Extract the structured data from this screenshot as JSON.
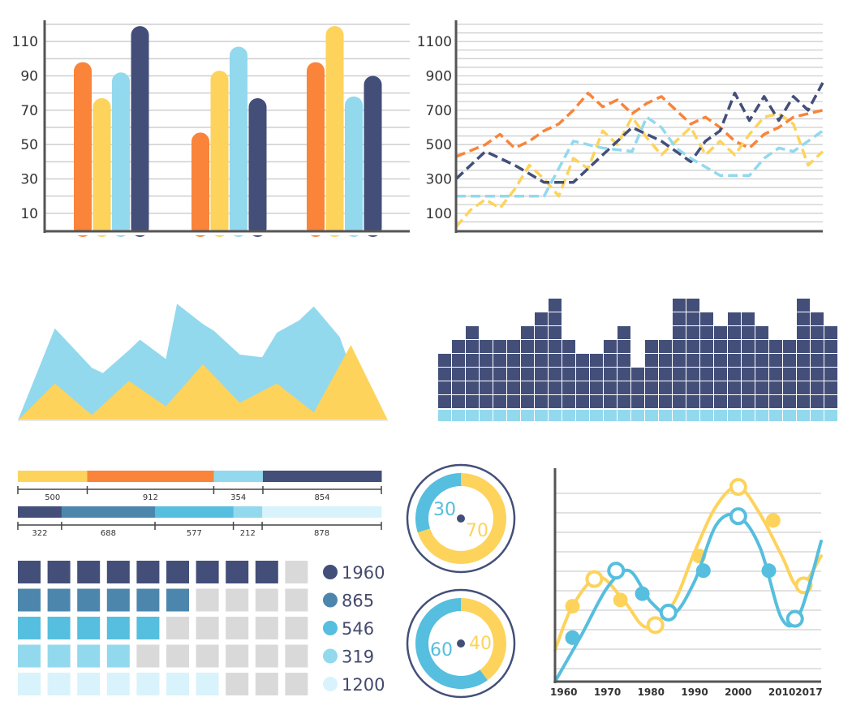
{
  "colors": {
    "orange": "#f9843a",
    "yellow": "#fdd35c",
    "lightblue": "#92d9ee",
    "navy": "#434f79",
    "steel": "#4d86ad",
    "cyan": "#56bede",
    "pale": "#d8f3fb",
    "grey": "#d9d9d9",
    "grid": "#cfcfcf",
    "axis": "#555555"
  },
  "chart_data": [
    {
      "type": "bar",
      "categories": [
        "",
        "",
        ""
      ],
      "series": [
        {
          "color": "orange",
          "values": [
            98,
            57,
            98
          ]
        },
        {
          "color": "yellow",
          "values": [
            77,
            93,
            119
          ]
        },
        {
          "color": "lightblue",
          "values": [
            92,
            107,
            78
          ]
        },
        {
          "color": "navy",
          "values": [
            119,
            77,
            90
          ]
        }
      ],
      "yticks": [
        "10",
        "30",
        "50",
        "70",
        "90",
        "110"
      ],
      "ylim": [
        0,
        120
      ],
      "grid": true
    },
    {
      "type": "line",
      "yticks": [
        "100",
        "300",
        "500",
        "700",
        "900",
        "1100"
      ],
      "ylim": [
        0,
        1200
      ],
      "xlim": [
        0,
        25
      ],
      "grid": true,
      "series": [
        {
          "color": "orange",
          "dash": true,
          "x": [
            0,
            2,
            3,
            4,
            5,
            6,
            7,
            8,
            9,
            10,
            11,
            12,
            13,
            14,
            15,
            16,
            17,
            18,
            19,
            20,
            21,
            22,
            23,
            24,
            25
          ],
          "y": [
            430,
            500,
            560,
            480,
            520,
            580,
            620,
            700,
            800,
            720,
            760,
            680,
            740,
            780,
            700,
            620,
            660,
            600,
            520,
            480,
            560,
            600,
            660,
            680,
            700
          ]
        },
        {
          "color": "yellow",
          "dash": true,
          "x": [
            0,
            1,
            2,
            3,
            4,
            5,
            6,
            7,
            8,
            9,
            10,
            11,
            12,
            13,
            14,
            15,
            16,
            17,
            18,
            19,
            20,
            21,
            22,
            23,
            24,
            25
          ],
          "y": [
            20,
            120,
            180,
            130,
            240,
            380,
            300,
            200,
            420,
            360,
            580,
            500,
            660,
            540,
            440,
            520,
            600,
            440,
            520,
            440,
            560,
            660,
            680,
            620,
            380,
            460
          ]
        },
        {
          "color": "navy",
          "dash": true,
          "x": [
            0,
            2,
            4,
            6,
            8,
            10,
            12,
            14,
            16,
            17,
            18,
            19,
            20,
            21,
            22,
            23,
            24,
            25
          ],
          "y": [
            300,
            460,
            380,
            280,
            280,
            440,
            600,
            520,
            400,
            520,
            580,
            800,
            640,
            780,
            640,
            780,
            700,
            860
          ]
        },
        {
          "color": "lightblue",
          "dash": true,
          "x": [
            0,
            6,
            8,
            10,
            12,
            13,
            14,
            15,
            16,
            18,
            20,
            21,
            22,
            23,
            24,
            25
          ],
          "y": [
            200,
            200,
            520,
            480,
            460,
            660,
            600,
            480,
            420,
            320,
            320,
            420,
            480,
            460,
            520,
            580
          ]
        }
      ]
    },
    {
      "type": "area",
      "series": [
        {
          "color": "lightblue",
          "x": [
            0,
            1,
            2,
            2.3,
            3,
            3.3,
            4,
            4.3,
            5,
            5.3,
            6,
            6.6,
            7,
            7.6,
            8,
            8.7,
            9,
            9.4,
            10
          ],
          "y": [
            0,
            10.5,
            6,
            5.4,
            8,
            9.2,
            7,
            13.3,
            11,
            10.2,
            7.5,
            7.2,
            10,
            11.4,
            13,
            9.5,
            6,
            3,
            0
          ]
        },
        {
          "color": "yellow",
          "x": [
            0,
            1,
            2,
            3,
            4,
            5,
            6,
            7,
            8,
            9,
            10
          ],
          "y": [
            0,
            4.2,
            0.6,
            4.5,
            1.6,
            6.4,
            2,
            4.2,
            0.9,
            8.6,
            0
          ]
        }
      ]
    },
    {
      "type": "bar",
      "values": [
        4,
        5,
        6,
        5,
        5,
        5,
        6,
        7,
        8,
        5,
        4,
        4,
        5,
        6,
        3,
        5,
        5,
        8,
        8,
        7,
        6,
        7,
        7,
        6,
        5,
        5,
        8,
        7,
        6
      ],
      "base_row": true
    },
    {
      "type": "bar",
      "stacked": "horizontal",
      "rows": [
        {
          "segments": [
            {
              "label": "500",
              "value": 500,
              "color": "yellow"
            },
            {
              "label": "912",
              "value": 912,
              "color": "orange"
            },
            {
              "label": "354",
              "value": 354,
              "color": "lightblue"
            },
            {
              "label": "854",
              "value": 854,
              "color": "navy"
            }
          ]
        },
        {
          "segments": [
            {
              "label": "322",
              "value": 322,
              "color": "navy"
            },
            {
              "label": "688",
              "value": 688,
              "color": "steel"
            },
            {
              "label": "577",
              "value": 577,
              "color": "cyan"
            },
            {
              "label": "212",
              "value": 212,
              "color": "lightblue"
            },
            {
              "label": "878",
              "value": 878,
              "color": "pale"
            }
          ]
        }
      ]
    },
    {
      "type": "table",
      "columns": 10,
      "rows": [
        {
          "filled": 9,
          "color": "navy",
          "label": "1960"
        },
        {
          "filled": 6,
          "color": "steel",
          "label": "865"
        },
        {
          "filled": 5,
          "color": "cyan",
          "label": "546"
        },
        {
          "filled": 4,
          "color": "lightblue",
          "label": "319"
        },
        {
          "filled": 7,
          "color": "pale",
          "label": "1200"
        }
      ]
    },
    {
      "type": "pie",
      "slices": [
        {
          "label": "30",
          "value": 30,
          "color": "cyan"
        },
        {
          "label": "70",
          "value": 70,
          "color": "yellow"
        }
      ]
    },
    {
      "type": "pie",
      "slices": [
        {
          "label": "60",
          "value": 60,
          "color": "cyan"
        },
        {
          "label": "40",
          "value": 40,
          "color": "yellow"
        }
      ]
    },
    {
      "type": "line",
      "xticks": [
        "1960",
        "1970",
        "1980",
        "1990",
        "2000",
        "2010",
        "2017"
      ],
      "xlim": [
        1958,
        2019
      ],
      "ylim": [
        0,
        1
      ],
      "grid": true,
      "series": [
        {
          "color": "yellow",
          "x": [
            1958,
            1962,
            1968,
            1974,
            1979,
            1985,
            1990,
            1995,
            2000,
            2005,
            2010,
            2014,
            2019
          ],
          "y": [
            0.15,
            0.36,
            0.5,
            0.38,
            0.26,
            0.37,
            0.62,
            0.84,
            0.93,
            0.8,
            0.6,
            0.45,
            0.6
          ],
          "markers": [
            {
              "x": 1962,
              "y": 0.36,
              "hollow": false
            },
            {
              "x": 1967,
              "y": 0.49,
              "hollow": true
            },
            {
              "x": 1973,
              "y": 0.39,
              "hollow": false
            },
            {
              "x": 1981,
              "y": 0.27,
              "hollow": true
            },
            {
              "x": 1991,
              "y": 0.6,
              "hollow": false
            },
            {
              "x": 2000,
              "y": 0.93,
              "hollow": true
            },
            {
              "x": 2008,
              "y": 0.77,
              "hollow": false
            },
            {
              "x": 2015,
              "y": 0.46,
              "hollow": true
            }
          ]
        },
        {
          "color": "cyan",
          "x": [
            1958,
            1964,
            1970,
            1975,
            1980,
            1985,
            1990,
            1995,
            2000,
            2005,
            2010,
            2014,
            2019
          ],
          "y": [
            0,
            0.22,
            0.45,
            0.53,
            0.38,
            0.32,
            0.48,
            0.75,
            0.79,
            0.64,
            0.3,
            0.32,
            0.67
          ],
          "markers": [
            {
              "x": 1962,
              "y": 0.21,
              "hollow": false
            },
            {
              "x": 1972,
              "y": 0.53,
              "hollow": true
            },
            {
              "x": 1978,
              "y": 0.42,
              "hollow": false
            },
            {
              "x": 1984,
              "y": 0.33,
              "hollow": true
            },
            {
              "x": 1992,
              "y": 0.53,
              "hollow": false
            },
            {
              "x": 2000,
              "y": 0.79,
              "hollow": true
            },
            {
              "x": 2007,
              "y": 0.53,
              "hollow": false
            },
            {
              "x": 2013,
              "y": 0.3,
              "hollow": true
            }
          ]
        }
      ]
    }
  ]
}
